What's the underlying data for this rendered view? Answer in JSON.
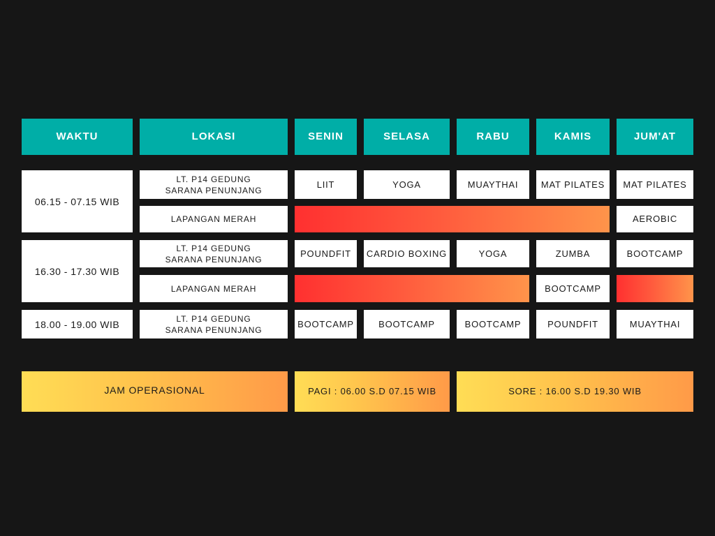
{
  "header": {
    "waktu": "WAKTU",
    "lokasi": "LOKASI",
    "days": [
      "SENIN",
      "SELASA",
      "RABU",
      "KAMIS",
      "JUM'AT"
    ]
  },
  "times": {
    "morning": "06.15 - 07.15 WIB",
    "afternoon": "16.30 - 17.30 WIB",
    "evening": "18.00 - 19.00 WIB"
  },
  "locations": {
    "gedung": "LT. P14 GEDUNG\nSARANA PENUNJANG",
    "lapangan": "LAPANGAN MERAH"
  },
  "schedule": {
    "morning_gedung": [
      "LIIT",
      "YOGA",
      "MUAYTHAI",
      "MAT PILATES",
      "MAT PILATES"
    ],
    "morning_lapangan_jumat": "AEROBIC",
    "afternoon_gedung": [
      "POUNDFIT",
      "CARDIO BOXING",
      "YOGA",
      "ZUMBA",
      "BOOTCAMP"
    ],
    "afternoon_lapangan_kamis": "BOOTCAMP",
    "evening_gedung": [
      "BOOTCAMP",
      "BOOTCAMP",
      "BOOTCAMP",
      "POUNDFIT",
      "MUAYTHAI"
    ]
  },
  "operational": {
    "label": "JAM OPERASIONAL",
    "pagi": "PAGI : 06.00 S.D 07.15 WIB",
    "sore": "SORE : 16.00 S.D 19.30 WIB"
  },
  "colors": {
    "background": "#161616",
    "header_teal": "#00aea7",
    "cell_white": "#ffffff",
    "empty_gradient": [
      "#ff3030",
      "#ff944a"
    ],
    "footer_gradient": [
      "#ffdd55",
      "#ff9a48"
    ]
  }
}
